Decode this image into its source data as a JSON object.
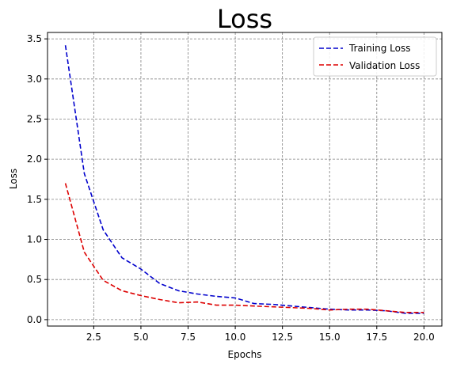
{
  "chart_data": {
    "type": "line",
    "title": "Loss",
    "xlabel": "Epochs",
    "ylabel": "Loss",
    "xlim": [
      0.05,
      20.95
    ],
    "ylim": [
      -0.08,
      3.58
    ],
    "xticks": [
      2.5,
      5.0,
      7.5,
      10.0,
      12.5,
      15.0,
      17.5,
      20.0
    ],
    "xtick_labels": [
      "2.5",
      "5.0",
      "7.5",
      "10.0",
      "12.5",
      "15.0",
      "17.5",
      "20.0"
    ],
    "yticks": [
      0.0,
      0.5,
      1.0,
      1.5,
      2.0,
      2.5,
      3.0,
      3.5
    ],
    "ytick_labels": [
      "0.0",
      "0.5",
      "1.0",
      "1.5",
      "2.0",
      "2.5",
      "3.0",
      "3.5"
    ],
    "grid": true,
    "legend_position": "top-right",
    "x": [
      1,
      2,
      3,
      4,
      5,
      6,
      7,
      8,
      9,
      10,
      11,
      12,
      13,
      14,
      15,
      16,
      17,
      18,
      19,
      20
    ],
    "series": [
      {
        "name": "Training Loss",
        "color": "#0000cc",
        "values": [
          3.42,
          1.82,
          1.12,
          0.77,
          0.63,
          0.45,
          0.36,
          0.32,
          0.29,
          0.27,
          0.2,
          0.19,
          0.17,
          0.15,
          0.13,
          0.12,
          0.12,
          0.11,
          0.08,
          0.08
        ]
      },
      {
        "name": "Validation Loss",
        "color": "#dd0000",
        "values": [
          1.7,
          0.84,
          0.49,
          0.36,
          0.3,
          0.25,
          0.21,
          0.22,
          0.18,
          0.18,
          0.17,
          0.16,
          0.15,
          0.14,
          0.12,
          0.13,
          0.13,
          0.11,
          0.09,
          0.09
        ]
      }
    ]
  }
}
